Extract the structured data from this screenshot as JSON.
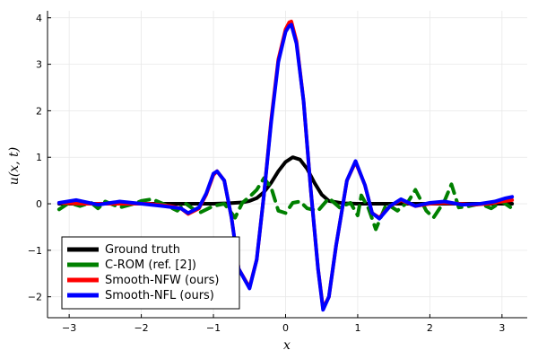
{
  "chart_data": {
    "type": "line",
    "xlabel": "x",
    "ylabel": "u(x, t)",
    "xlim": [
      -3.3,
      3.35
    ],
    "ylim": [
      -2.45,
      4.15
    ],
    "xticks": [
      -3,
      -2,
      -1,
      0,
      1,
      2,
      3
    ],
    "yticks": [
      -2,
      -1,
      0,
      1,
      2,
      3,
      4
    ],
    "xtick_labels": [
      "−3",
      "−2",
      "−1",
      "0",
      "1",
      "2",
      "3"
    ],
    "ytick_labels": [
      "−2",
      "−1",
      "0",
      "1",
      "2",
      "3",
      "4"
    ],
    "grid": true,
    "legend_position": "bottom-left",
    "series": [
      {
        "name": "Ground truth",
        "color": "#000000",
        "style": "solid",
        "x": [
          -3.14,
          -2.0,
          -1.5,
          -1.2,
          -1.0,
          -0.8,
          -0.6,
          -0.5,
          -0.4,
          -0.3,
          -0.2,
          -0.1,
          0.0,
          0.1,
          0.2,
          0.3,
          0.4,
          0.5,
          0.6,
          0.8,
          1.0,
          1.2,
          1.5,
          2.0,
          3.14
        ],
        "y": [
          0.0,
          0.0,
          0.0,
          0.0,
          0.0,
          0.01,
          0.03,
          0.06,
          0.12,
          0.25,
          0.45,
          0.7,
          0.9,
          1.0,
          0.95,
          0.75,
          0.45,
          0.2,
          0.06,
          0.01,
          0.0,
          0.0,
          0.0,
          0.0,
          0.0
        ]
      },
      {
        "name": "C-ROM (ref. [2])",
        "color": "#008000",
        "style": "dashed",
        "x": [
          -3.14,
          -3.0,
          -2.85,
          -2.7,
          -2.6,
          -2.5,
          -2.3,
          -2.1,
          -2.0,
          -1.85,
          -1.7,
          -1.5,
          -1.4,
          -1.2,
          -1.0,
          -0.85,
          -0.7,
          -0.6,
          -0.5,
          -0.4,
          -0.3,
          -0.2,
          -0.1,
          0.0,
          0.1,
          0.2,
          0.3,
          0.45,
          0.6,
          0.75,
          0.9,
          1.0,
          1.05,
          1.15,
          1.25,
          1.4,
          1.55,
          1.7,
          1.8,
          1.95,
          2.05,
          2.2,
          2.3,
          2.4,
          2.55,
          2.7,
          2.85,
          3.0,
          3.14
        ],
        "y": [
          -0.12,
          0.02,
          -0.05,
          0.03,
          -0.1,
          0.05,
          -0.08,
          0.0,
          0.06,
          0.1,
          0.0,
          -0.15,
          0.02,
          -0.2,
          -0.05,
          0.0,
          -0.3,
          0.02,
          0.15,
          0.3,
          0.55,
          0.35,
          -0.15,
          -0.2,
          0.02,
          0.05,
          -0.1,
          -0.15,
          0.12,
          -0.08,
          0.02,
          -0.25,
          0.18,
          -0.1,
          -0.55,
          0.0,
          -0.15,
          0.05,
          0.3,
          -0.15,
          -0.3,
          0.05,
          0.42,
          -0.08,
          -0.05,
          0.0,
          -0.1,
          0.05,
          -0.1
        ]
      },
      {
        "name": "Smooth-NFW (ours)",
        "color": "#ff0000",
        "style": "solid",
        "x": [
          -3.14,
          -2.8,
          -2.5,
          -2.2,
          -1.9,
          -1.6,
          -1.45,
          -1.35,
          -1.2,
          -1.1,
          -1.0,
          -0.95,
          -0.85,
          -0.75,
          -0.65,
          -0.5,
          -0.4,
          -0.3,
          -0.2,
          -0.1,
          0.0,
          0.05,
          0.08,
          0.15,
          0.25,
          0.35,
          0.45,
          0.52,
          0.6,
          0.7,
          0.85,
          0.97,
          1.1,
          1.2,
          1.3,
          1.45,
          1.6,
          1.8,
          2.0,
          2.2,
          2.4,
          2.6,
          2.8,
          3.0,
          3.14
        ],
        "y": [
          0.02,
          0.0,
          0.0,
          0.0,
          0.0,
          -0.05,
          -0.1,
          -0.22,
          -0.1,
          0.2,
          0.62,
          0.7,
          0.5,
          -0.3,
          -1.4,
          -1.8,
          -1.2,
          0.2,
          1.8,
          3.1,
          3.75,
          3.9,
          3.92,
          3.5,
          2.2,
          0.3,
          -1.4,
          -2.25,
          -2.0,
          -0.9,
          0.5,
          0.9,
          0.4,
          -0.2,
          -0.3,
          -0.05,
          0.08,
          -0.05,
          0.0,
          0.02,
          0.0,
          -0.02,
          0.0,
          0.05,
          0.08
        ]
      },
      {
        "name": "Smooth-NFL (ours)",
        "color": "#0000ff",
        "style": "solid",
        "x": [
          -3.14,
          -2.9,
          -2.6,
          -2.3,
          -2.0,
          -1.7,
          -1.45,
          -1.35,
          -1.2,
          -1.1,
          -1.0,
          -0.95,
          -0.85,
          -0.75,
          -0.65,
          -0.5,
          -0.4,
          -0.3,
          -0.2,
          -0.1,
          0.0,
          0.05,
          0.08,
          0.15,
          0.25,
          0.35,
          0.45,
          0.52,
          0.6,
          0.7,
          0.85,
          0.97,
          1.1,
          1.2,
          1.3,
          1.45,
          1.6,
          1.8,
          2.0,
          2.2,
          2.45,
          2.7,
          2.9,
          3.05,
          3.14
        ],
        "y": [
          0.02,
          0.08,
          -0.02,
          0.05,
          0.0,
          -0.05,
          -0.1,
          -0.2,
          -0.08,
          0.22,
          0.65,
          0.7,
          0.5,
          -0.3,
          -1.4,
          -1.82,
          -1.2,
          0.2,
          1.75,
          3.05,
          3.7,
          3.82,
          3.85,
          3.45,
          2.2,
          0.3,
          -1.4,
          -2.28,
          -2.0,
          -0.9,
          0.5,
          0.92,
          0.4,
          -0.2,
          -0.32,
          -0.05,
          0.1,
          -0.05,
          0.02,
          0.05,
          -0.02,
          0.0,
          0.05,
          0.12,
          0.15
        ]
      }
    ]
  }
}
